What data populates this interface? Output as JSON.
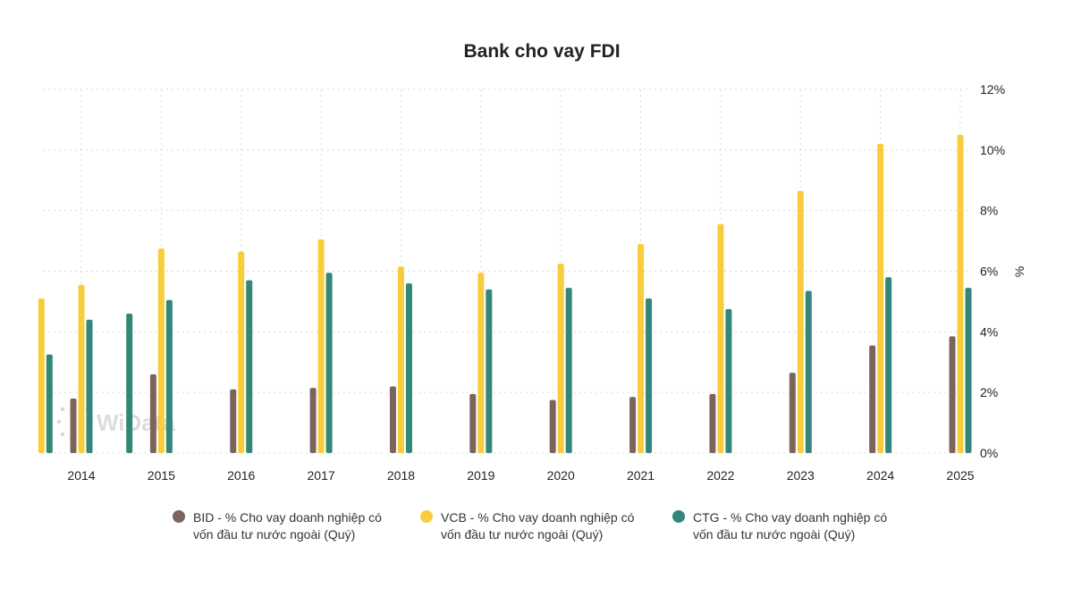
{
  "colors": {
    "BID": "#7b645b",
    "VCB": "#f8cd3b",
    "CTG": "#338779"
  },
  "watermark": "WiData",
  "chart_data": {
    "type": "bar",
    "title": "Bank cho vay FDI",
    "xlabel": "",
    "ylabel": "%",
    "y_axis_position": "right",
    "ylim": [
      0,
      12
    ],
    "y_ticks": [
      "0%",
      "2%",
      "4%",
      "6%",
      "8%",
      "10%",
      "12%"
    ],
    "x": [
      2013.5,
      2014,
      2014.5,
      2015,
      2016,
      2017,
      2018,
      2019,
      2020,
      2021,
      2022,
      2023,
      2024,
      2025
    ],
    "x_tick_labels": [
      "2014",
      "2015",
      "2016",
      "2017",
      "2018",
      "2019",
      "2020",
      "2021",
      "2022",
      "2023",
      "2024",
      "2025"
    ],
    "grid": true,
    "legend_position": "bottom",
    "series": [
      {
        "key": "BID",
        "name_lines": [
          "BID - % Cho vay doanh nghiệp có",
          "vốn đầu tư nước ngoài (Quý)"
        ],
        "values": [
          null,
          1.8,
          null,
          2.6,
          2.1,
          2.15,
          2.2,
          1.95,
          1.75,
          1.85,
          1.95,
          2.65,
          3.55,
          3.85
        ]
      },
      {
        "key": "VCB",
        "name_lines": [
          "VCB - % Cho vay doanh nghiệp có",
          "vốn đầu tư nước ngoài (Quý)"
        ],
        "values": [
          5.1,
          5.55,
          null,
          6.75,
          6.65,
          7.05,
          6.15,
          5.95,
          6.25,
          6.9,
          7.55,
          8.65,
          10.2,
          10.5
        ]
      },
      {
        "key": "CTG",
        "name_lines": [
          "CTG - % Cho vay doanh nghiệp có",
          "vốn đầu tư nước ngoài (Quý)"
        ],
        "values": [
          3.25,
          4.4,
          4.6,
          5.05,
          5.7,
          5.95,
          5.6,
          5.4,
          5.45,
          5.1,
          4.75,
          5.35,
          5.8,
          5.45
        ]
      }
    ]
  }
}
